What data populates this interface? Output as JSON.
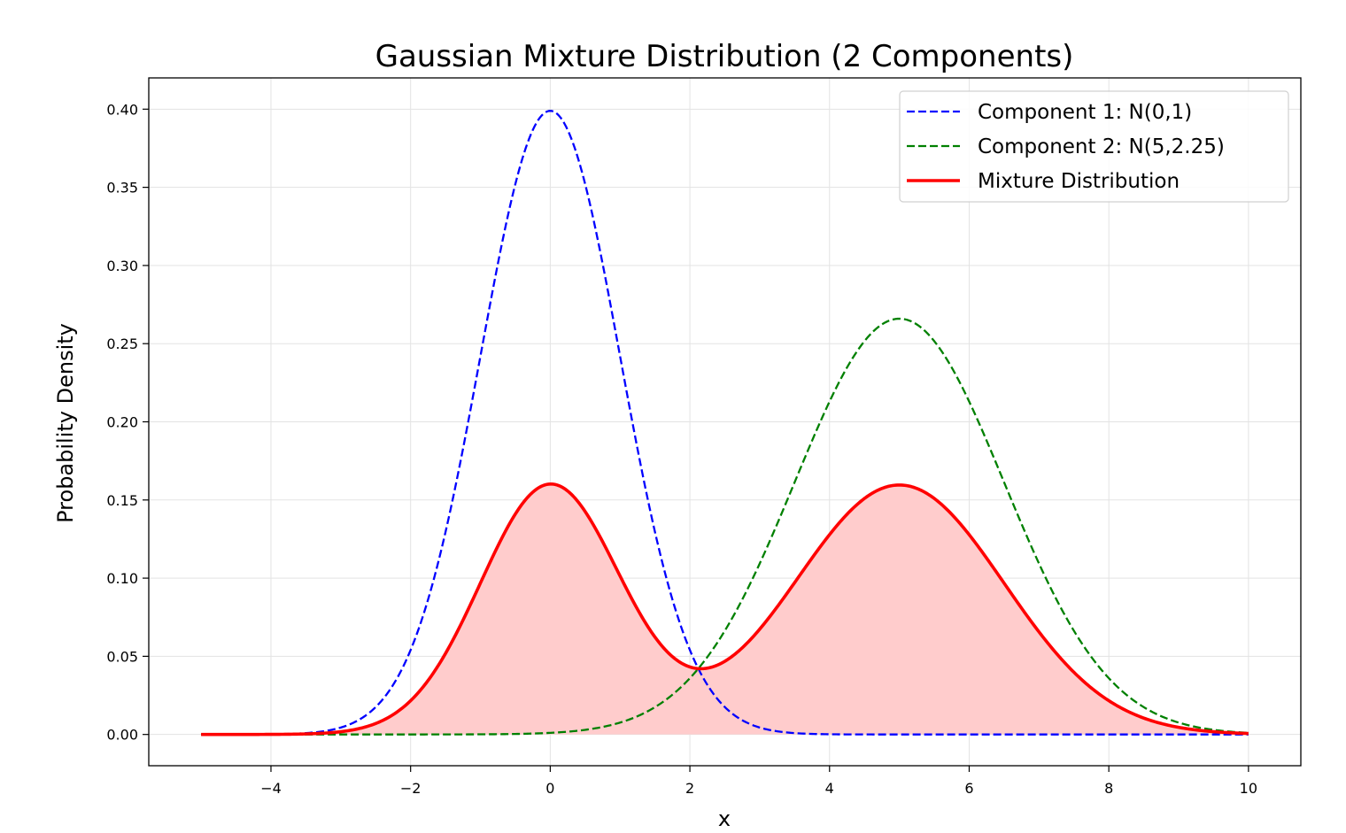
{
  "chart_data": {
    "type": "line",
    "title": "Gaussian Mixture Distribution (2 Components)",
    "xlabel": "x",
    "ylabel": "Probability Density",
    "xlim": [
      -5.75,
      10.75
    ],
    "ylim": [
      -0.02,
      0.42
    ],
    "xticks": [
      -4,
      -2,
      0,
      2,
      4,
      6,
      8,
      10
    ],
    "xtick_labels": [
      "−4",
      "−2",
      "0",
      "2",
      "4",
      "6",
      "8",
      "10"
    ],
    "yticks": [
      0.0,
      0.05,
      0.1,
      0.15,
      0.2,
      0.25,
      0.3,
      0.35,
      0.4
    ],
    "ytick_labels": [
      "0.00",
      "0.05",
      "0.10",
      "0.15",
      "0.20",
      "0.25",
      "0.30",
      "0.35",
      "0.40"
    ],
    "grid": true,
    "legend_position": "top-right",
    "x_range": [
      -5,
      10
    ],
    "series": [
      {
        "name": "Component 1: N(0,1)",
        "color": "#0000ff",
        "style": "dashed",
        "distribution": {
          "weights": [
            1.0
          ],
          "means": [
            0
          ],
          "variances": [
            1
          ]
        }
      },
      {
        "name": "Component 2: N(5,2.25)",
        "color": "#008000",
        "style": "dashed",
        "distribution": {
          "weights": [
            1.0
          ],
          "means": [
            5
          ],
          "variances": [
            2.25
          ]
        }
      },
      {
        "name": "Mixture Distribution",
        "color": "#ff0000",
        "style": "solid",
        "fill": "#ffcccc",
        "distribution": {
          "weights": [
            0.4,
            0.6
          ],
          "means": [
            0,
            5
          ],
          "variances": [
            1,
            2.25
          ]
        }
      }
    ]
  }
}
